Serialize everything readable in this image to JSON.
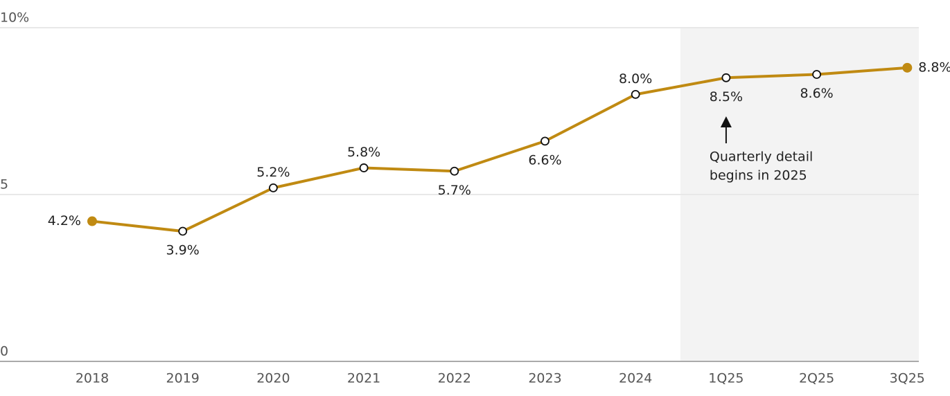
{
  "chart_data": {
    "type": "line",
    "categories": [
      "2018",
      "2019",
      "2020",
      "2021",
      "2022",
      "2023",
      "2024",
      "1Q25",
      "2Q25",
      "3Q25"
    ],
    "series": [
      {
        "color": "#c08a12",
        "values": [
          4.2,
          3.9,
          5.2,
          5.8,
          5.7,
          6.6,
          8.0,
          8.5,
          8.6,
          8.8
        ],
        "value_labels": [
          "4.2%",
          "3.9%",
          "5.2%",
          "5.8%",
          "5.7%",
          "6.6%",
          "8.0%",
          "8.5%",
          "8.6%",
          "8.8%"
        ]
      }
    ],
    "ylim": [
      0,
      10
    ],
    "yticks": [
      0,
      5,
      {
        "value": 10,
        "label": "10%"
      }
    ],
    "grid": true,
    "annotation": {
      "lines": [
        "Quarterly detail",
        "begins in 2025"
      ]
    }
  }
}
